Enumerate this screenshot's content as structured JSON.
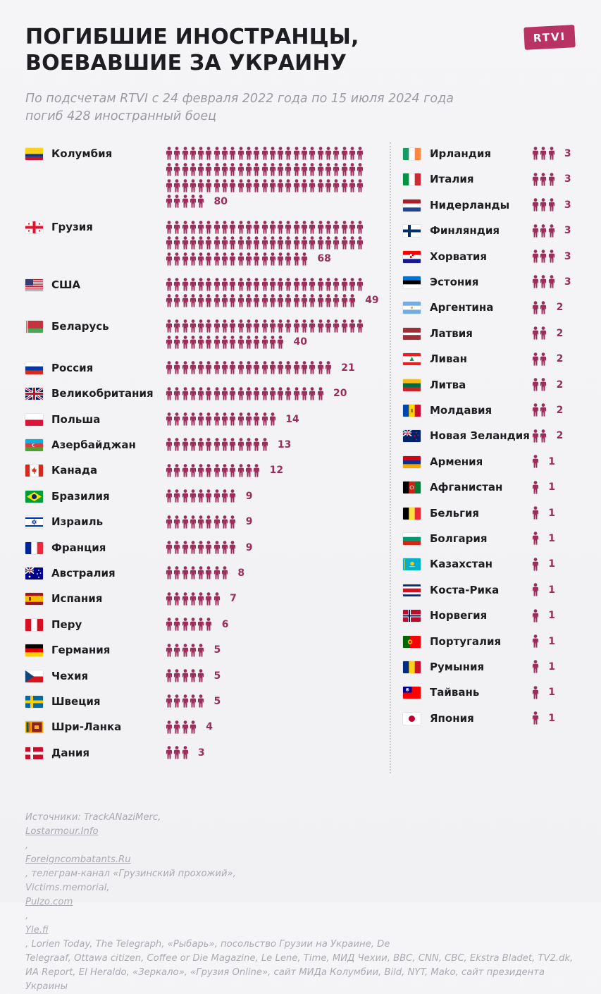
{
  "title_lines": [
    "ПОГИБШИЕ ИНОСТРАНЦЫ,",
    "ВОЕВАВШИЕ ЗА УКРАИНУ"
  ],
  "logo": "RTVI",
  "subtitle_lines": [
    "По подсчетам RTVI с 24 февраля 2022 года по 15 июля 2024 года",
    "погиб 428 иностранный боец"
  ],
  "colors": {
    "icon": "#9a2e5a",
    "number": "#9a2e5a",
    "brand": "#b83264"
  },
  "icon_name": "person-icon",
  "chart_data": {
    "type": "pictogram",
    "unit": "1 icon = 1 person",
    "total": 428,
    "columns": [
      {
        "items": [
          {
            "country": "Колумбия",
            "value": 80,
            "flag": "colombia"
          },
          {
            "country": "Грузия",
            "value": 68,
            "flag": "georgia"
          },
          {
            "country": "США",
            "value": 49,
            "flag": "usa"
          },
          {
            "country": "Беларусь",
            "value": 40,
            "flag": "belarus"
          },
          {
            "country": "Россия",
            "value": 21,
            "flag": "russia"
          },
          {
            "country": "Великобритания",
            "value": 20,
            "flag": "uk"
          },
          {
            "country": "Польша",
            "value": 14,
            "flag": "poland"
          },
          {
            "country": "Азербайджан",
            "value": 13,
            "flag": "azerbaijan"
          },
          {
            "country": "Канада",
            "value": 12,
            "flag": "canada"
          },
          {
            "country": "Бразилия",
            "value": 9,
            "flag": "brazil"
          },
          {
            "country": "Израиль",
            "value": 9,
            "flag": "israel"
          },
          {
            "country": "Франция",
            "value": 9,
            "flag": "france"
          },
          {
            "country": "Австралия",
            "value": 8,
            "flag": "australia"
          },
          {
            "country": "Испания",
            "value": 7,
            "flag": "spain"
          },
          {
            "country": "Перу",
            "value": 6,
            "flag": "peru"
          },
          {
            "country": "Германия",
            "value": 5,
            "flag": "germany"
          },
          {
            "country": "Чехия",
            "value": 5,
            "flag": "czechia"
          },
          {
            "country": "Швеция",
            "value": 5,
            "flag": "sweden"
          },
          {
            "country": "Шри-Ланка",
            "value": 4,
            "flag": "srilanka"
          },
          {
            "country": "Дания",
            "value": 3,
            "flag": "denmark"
          }
        ]
      },
      {
        "items": [
          {
            "country": "Ирландия",
            "value": 3,
            "flag": "ireland"
          },
          {
            "country": "Италия",
            "value": 3,
            "flag": "italy"
          },
          {
            "country": "Нидерланды",
            "value": 3,
            "flag": "netherlands"
          },
          {
            "country": "Финляндия",
            "value": 3,
            "flag": "finland"
          },
          {
            "country": "Хорватия",
            "value": 3,
            "flag": "croatia"
          },
          {
            "country": "Эстония",
            "value": 3,
            "flag": "estonia"
          },
          {
            "country": "Аргентина",
            "value": 2,
            "flag": "argentina"
          },
          {
            "country": "Латвия",
            "value": 2,
            "flag": "latvia"
          },
          {
            "country": "Ливан",
            "value": 2,
            "flag": "lebanon"
          },
          {
            "country": "Литва",
            "value": 2,
            "flag": "lithuania"
          },
          {
            "country": "Молдавия",
            "value": 2,
            "flag": "moldova"
          },
          {
            "country": "Новая Зеландия",
            "value": 2,
            "flag": "newzealand"
          },
          {
            "country": "Армения",
            "value": 1,
            "flag": "armenia"
          },
          {
            "country": "Афганистан",
            "value": 1,
            "flag": "afghanistan"
          },
          {
            "country": "Бельгия",
            "value": 1,
            "flag": "belgium"
          },
          {
            "country": "Болгария",
            "value": 1,
            "flag": "bulgaria"
          },
          {
            "country": "Казахстан",
            "value": 1,
            "flag": "kazakhstan"
          },
          {
            "country": "Коста-Рика",
            "value": 1,
            "flag": "costarica"
          },
          {
            "country": "Норвегия",
            "value": 1,
            "flag": "norway"
          },
          {
            "country": "Португалия",
            "value": 1,
            "flag": "portugal"
          },
          {
            "country": "Румыния",
            "value": 1,
            "flag": "romania"
          },
          {
            "country": "Тайвань",
            "value": 1,
            "flag": "taiwan"
          },
          {
            "country": "Япония",
            "value": 1,
            "flag": "japan"
          }
        ]
      }
    ]
  },
  "sources_lines": [
    [
      {
        "t": "Источники: TrackANaziMerc, "
      },
      {
        "t": "Lostarmour.Info",
        "u": true
      },
      {
        "t": ", "
      },
      {
        "t": "Foreigncombatants.Ru",
        "u": true
      },
      {
        "t": ", телеграм-канал «Грузинский прохожий»,"
      }
    ],
    [
      {
        "t": "Victims.memorial, "
      },
      {
        "t": "Pulzo.com",
        "u": true
      },
      {
        "t": ", "
      },
      {
        "t": "Yle.fi",
        "u": true
      },
      {
        "t": ", Lorien Today, The Telegraph, «Рыбарь», посольство Грузии на Украине, De"
      }
    ],
    [
      {
        "t": "Telegraaf, Ottawa citizen, Coffee or Die Magazine, Le Lene, Time, МИД Чехии, BBC, CNN, CBC, Ekstra Bladet, TV2.dk,"
      }
    ],
    [
      {
        "t": "ИА Report, El Heraldo, «Зеркало», «Грузия Online», сайт МИДа Колумбии, Bild, NYT, Mako, сайт президента"
      }
    ],
    [
      {
        "t": "Украины"
      }
    ]
  ]
}
